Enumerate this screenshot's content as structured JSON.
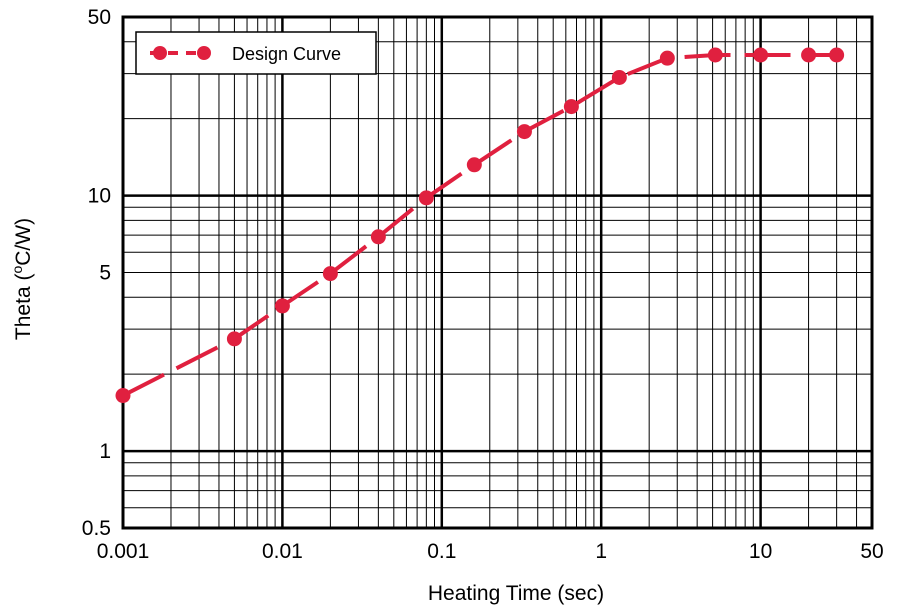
{
  "chart_data": {
    "type": "line",
    "title": "",
    "xlabel": "Heating Time (sec)",
    "ylabel_prefix": "Theta (",
    "ylabel_sup": "o",
    "ylabel_suffix": "C/W)",
    "x_scale": "log",
    "y_scale": "log",
    "xlim": [
      0.001,
      50
    ],
    "ylim": [
      0.5,
      50
    ],
    "grid": true,
    "legend_position": "top-left",
    "x_ticks": [
      {
        "value": 0.001,
        "label": "0.001"
      },
      {
        "value": 0.01,
        "label": "0.01"
      },
      {
        "value": 0.1,
        "label": "0.1"
      },
      {
        "value": 1,
        "label": "1"
      },
      {
        "value": 10,
        "label": "10"
      },
      {
        "value": 50,
        "label": "50"
      }
    ],
    "y_ticks": [
      {
        "value": 0.5,
        "label": "0.5"
      },
      {
        "value": 1,
        "label": "1"
      },
      {
        "value": 5,
        "label": "5"
      },
      {
        "value": 10,
        "label": "10"
      },
      {
        "value": 50,
        "label": "50"
      }
    ],
    "series": [
      {
        "name": "Design Curve",
        "color": "#e0203f",
        "line_style": "dashed",
        "marker": "circle",
        "points": [
          {
            "x": 0.001,
            "y": 1.65
          },
          {
            "x": 0.005,
            "y": 2.75
          },
          {
            "x": 0.01,
            "y": 3.7
          },
          {
            "x": 0.02,
            "y": 4.95
          },
          {
            "x": 0.04,
            "y": 6.9
          },
          {
            "x": 0.08,
            "y": 9.8
          },
          {
            "x": 0.16,
            "y": 13.2
          },
          {
            "x": 0.33,
            "y": 17.8
          },
          {
            "x": 0.65,
            "y": 22.3
          },
          {
            "x": 1.3,
            "y": 29
          },
          {
            "x": 2.6,
            "y": 34.5
          },
          {
            "x": 5.2,
            "y": 35.5
          },
          {
            "x": 10,
            "y": 35.5
          },
          {
            "x": 20,
            "y": 35.5
          },
          {
            "x": 30,
            "y": 35.5
          }
        ]
      }
    ]
  }
}
